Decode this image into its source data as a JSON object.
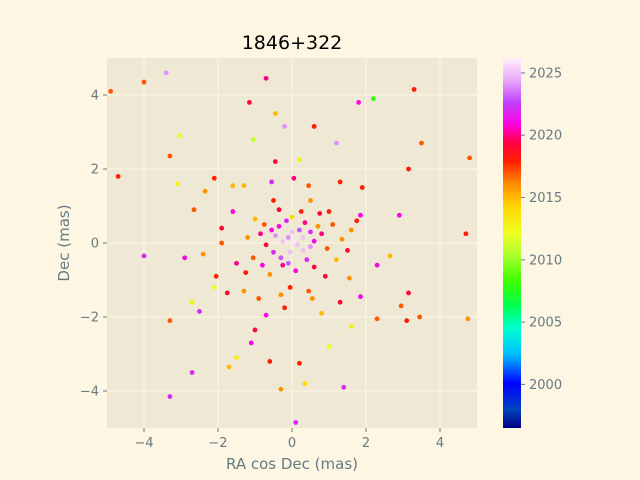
{
  "chart_data": {
    "type": "scatter",
    "title": "1846+322",
    "xlabel": "RA cos Dec (mas)",
    "ylabel": "Dec (mas)",
    "xlim": [
      -5,
      5
    ],
    "ylim": [
      -5,
      5
    ],
    "xticks": [
      -4,
      -2,
      0,
      2,
      4
    ],
    "yticks": [
      -4,
      -2,
      0,
      2,
      4
    ],
    "grid": true,
    "colorbar": {
      "label": "",
      "colormap": "gist_ncar",
      "range": [
        1996.5,
        2026.2
      ],
      "ticks": [
        2000,
        2005,
        2010,
        2015,
        2020,
        2025
      ]
    },
    "points": [
      {
        "x": -4.9,
        "y": 4.1,
        "c": 2017
      },
      {
        "x": -4.7,
        "y": 1.8,
        "c": 2018
      },
      {
        "x": -4.0,
        "y": 4.35,
        "c": 2017
      },
      {
        "x": -3.4,
        "y": 4.6,
        "c": 2024
      },
      {
        "x": -3.3,
        "y": 2.35,
        "c": 2017
      },
      {
        "x": -3.05,
        "y": 2.9,
        "c": 2012
      },
      {
        "x": -3.1,
        "y": 1.6,
        "c": 2013
      },
      {
        "x": -3.3,
        "y": -2.1,
        "c": 2017
      },
      {
        "x": -3.3,
        "y": -4.15,
        "c": 2022
      },
      {
        "x": -2.7,
        "y": -3.5,
        "c": 2022
      },
      {
        "x": -4.0,
        "y": -0.35,
        "c": 2022
      },
      {
        "x": -2.9,
        "y": -0.4,
        "c": 2021
      },
      {
        "x": -2.5,
        "y": -1.85,
        "c": 2022
      },
      {
        "x": -2.1,
        "y": 1.75,
        "c": 2018
      },
      {
        "x": -1.6,
        "y": 1.55,
        "c": 2015
      },
      {
        "x": -1.15,
        "y": 3.8,
        "c": 2019
      },
      {
        "x": -0.7,
        "y": 4.45,
        "c": 2020
      },
      {
        "x": -0.45,
        "y": 3.5,
        "c": 2015
      },
      {
        "x": -0.2,
        "y": 3.15,
        "c": 2024
      },
      {
        "x": 0.6,
        "y": 3.15,
        "c": 2018
      },
      {
        "x": 1.2,
        "y": 2.7,
        "c": 2024
      },
      {
        "x": 1.8,
        "y": 3.8,
        "c": 2021
      },
      {
        "x": 2.2,
        "y": 3.9,
        "c": 2008
      },
      {
        "x": 3.3,
        "y": 4.15,
        "c": 2018
      },
      {
        "x": 3.5,
        "y": 2.7,
        "c": 2017
      },
      {
        "x": 3.15,
        "y": 2.0,
        "c": 2018
      },
      {
        "x": 4.8,
        "y": 2.3,
        "c": 2017
      },
      {
        "x": 4.7,
        "y": 0.25,
        "c": 2018
      },
      {
        "x": 4.75,
        "y": -2.05,
        "c": 2016
      },
      {
        "x": 3.45,
        "y": -2.0,
        "c": 2017
      },
      {
        "x": 3.1,
        "y": -2.1,
        "c": 2018
      },
      {
        "x": 2.95,
        "y": -1.7,
        "c": 2017
      },
      {
        "x": 3.15,
        "y": -1.35,
        "c": 2019
      },
      {
        "x": 2.9,
        "y": 0.75,
        "c": 2021
      },
      {
        "x": 2.65,
        "y": -0.35,
        "c": 2015
      },
      {
        "x": 2.3,
        "y": -2.05,
        "c": 2017
      },
      {
        "x": 1.6,
        "y": -2.25,
        "c": 2013
      },
      {
        "x": 1.4,
        "y": -3.9,
        "c": 2022
      },
      {
        "x": 1.0,
        "y": -2.8,
        "c": 2012
      },
      {
        "x": 0.2,
        "y": -3.25,
        "c": 2018
      },
      {
        "x": 0.35,
        "y": -3.8,
        "c": 2014
      },
      {
        "x": -0.3,
        "y": -3.95,
        "c": 2016
      },
      {
        "x": 0.1,
        "y": -4.85,
        "c": 2022
      },
      {
        "x": -0.6,
        "y": -3.2,
        "c": 2018
      },
      {
        "x": -1.5,
        "y": -3.1,
        "c": 2013
      },
      {
        "x": -1.7,
        "y": -3.35,
        "c": 2015
      },
      {
        "x": -1.1,
        "y": -2.7,
        "c": 2021
      },
      {
        "x": -1.0,
        "y": -2.35,
        "c": 2019
      },
      {
        "x": -2.7,
        "y": -1.6,
        "c": 2013
      },
      {
        "x": -2.1,
        "y": -1.2,
        "c": 2012
      },
      {
        "x": -2.05,
        "y": -0.9,
        "c": 2018
      },
      {
        "x": -2.4,
        "y": -0.3,
        "c": 2016
      },
      {
        "x": -1.9,
        "y": 0.4,
        "c": 2019
      },
      {
        "x": -2.65,
        "y": 0.9,
        "c": 2017
      },
      {
        "x": -2.35,
        "y": 1.4,
        "c": 2016
      },
      {
        "x": -1.3,
        "y": 1.55,
        "c": 2015
      },
      {
        "x": -0.45,
        "y": 2.2,
        "c": 2019
      },
      {
        "x": -1.05,
        "y": 2.8,
        "c": 2011
      },
      {
        "x": 0.2,
        "y": 2.25,
        "c": 2013
      },
      {
        "x": 1.3,
        "y": 1.65,
        "c": 2018
      },
      {
        "x": 1.9,
        "y": 1.5,
        "c": 2018
      },
      {
        "x": 1.85,
        "y": 0.75,
        "c": 2021
      },
      {
        "x": 1.75,
        "y": 0.6,
        "c": 2018
      },
      {
        "x": 2.3,
        "y": -0.6,
        "c": 2021
      },
      {
        "x": 1.85,
        "y": -1.45,
        "c": 2021
      },
      {
        "x": 1.3,
        "y": -1.6,
        "c": 2019
      },
      {
        "x": 0.8,
        "y": -1.9,
        "c": 2015
      },
      {
        "x": -0.3,
        "y": -1.4,
        "c": 2016
      },
      {
        "x": -0.9,
        "y": -1.5,
        "c": 2017
      },
      {
        "x": -1.3,
        "y": -1.3,
        "c": 2016
      },
      {
        "x": -1.0,
        "y": 0.65,
        "c": 2015
      },
      {
        "x": -0.5,
        "y": 1.15,
        "c": 2018
      },
      {
        "x": 0.5,
        "y": 1.15,
        "c": 2016
      },
      {
        "x": 1.0,
        "y": 0.85,
        "c": 2018
      },
      {
        "x": 1.35,
        "y": 0.1,
        "c": 2016
      },
      {
        "x": 1.2,
        "y": -0.45,
        "c": 2015
      },
      {
        "x": 0.9,
        "y": -0.9,
        "c": 2019
      },
      {
        "x": 0.45,
        "y": -1.3,
        "c": 2017
      },
      {
        "x": -0.05,
        "y": -1.2,
        "c": 2018
      },
      {
        "x": -0.6,
        "y": -0.85,
        "c": 2016
      },
      {
        "x": -1.05,
        "y": -0.4,
        "c": 2017
      },
      {
        "x": -1.2,
        "y": 0.15,
        "c": 2016
      },
      {
        "x": -0.75,
        "y": 0.5,
        "c": 2017
      },
      {
        "x": 0.0,
        "y": 0.7,
        "c": 2014
      },
      {
        "x": 0.7,
        "y": 0.45,
        "c": 2016
      },
      {
        "x": 0.95,
        "y": -0.15,
        "c": 2017
      },
      {
        "x": 0.6,
        "y": -0.65,
        "c": 2019
      },
      {
        "x": -0.25,
        "y": -0.6,
        "c": 2020
      },
      {
        "x": -0.7,
        "y": -0.05,
        "c": 2019
      },
      {
        "x": -0.35,
        "y": 0.45,
        "c": 2021
      },
      {
        "x": 0.35,
        "y": 0.55,
        "c": 2020
      },
      {
        "x": 0.6,
        "y": 0.05,
        "c": 2021
      },
      {
        "x": 0.4,
        "y": -0.45,
        "c": 2022
      },
      {
        "x": -0.1,
        "y": -0.55,
        "c": 2023
      },
      {
        "x": -0.5,
        "y": -0.25,
        "c": 2022
      },
      {
        "x": -0.45,
        "y": 0.2,
        "c": 2024
      },
      {
        "x": 0.0,
        "y": 0.3,
        "c": 2025
      },
      {
        "x": 0.3,
        "y": 0.15,
        "c": 2025
      },
      {
        "x": 0.3,
        "y": -0.2,
        "c": 2025
      },
      {
        "x": -0.05,
        "y": -0.25,
        "c": 2025
      },
      {
        "x": -0.25,
        "y": 0.05,
        "c": 2025
      },
      {
        "x": 0.05,
        "y": 0.05,
        "c": 2026
      },
      {
        "x": 0.15,
        "y": -0.05,
        "c": 2025
      },
      {
        "x": -0.1,
        "y": 0.15,
        "c": 2024
      },
      {
        "x": 0.2,
        "y": 0.35,
        "c": 2023
      },
      {
        "x": -0.3,
        "y": -0.4,
        "c": 2023
      },
      {
        "x": 0.5,
        "y": 0.3,
        "c": 2022
      },
      {
        "x": 0.5,
        "y": -0.1,
        "c": 2024
      },
      {
        "x": -0.55,
        "y": 0.35,
        "c": 2021
      },
      {
        "x": -0.15,
        "y": 0.6,
        "c": 2022
      },
      {
        "x": 0.1,
        "y": -0.75,
        "c": 2021
      },
      {
        "x": 0.8,
        "y": 0.25,
        "c": 2020
      },
      {
        "x": -0.85,
        "y": 0.25,
        "c": 2020
      },
      {
        "x": 0.25,
        "y": 0.85,
        "c": 2018
      },
      {
        "x": -0.35,
        "y": 0.9,
        "c": 2019
      },
      {
        "x": 0.75,
        "y": 0.8,
        "c": 2019
      },
      {
        "x": -0.8,
        "y": -0.6,
        "c": 2021
      },
      {
        "x": 1.1,
        "y": 0.5,
        "c": 2017
      },
      {
        "x": -1.25,
        "y": -0.8,
        "c": 2018
      },
      {
        "x": 1.5,
        "y": -0.2,
        "c": 2019
      },
      {
        "x": -1.5,
        "y": -0.55,
        "c": 2020
      },
      {
        "x": 1.6,
        "y": 0.35,
        "c": 2016
      },
      {
        "x": -1.6,
        "y": 0.85,
        "c": 2021
      },
      {
        "x": 0.45,
        "y": 1.55,
        "c": 2017
      },
      {
        "x": -0.55,
        "y": 1.65,
        "c": 2022
      },
      {
        "x": 0.05,
        "y": 1.75,
        "c": 2020
      },
      {
        "x": -0.2,
        "y": -1.75,
        "c": 2018
      },
      {
        "x": 0.55,
        "y": -1.5,
        "c": 2016
      },
      {
        "x": -0.7,
        "y": -1.95,
        "c": 2021
      },
      {
        "x": -1.75,
        "y": -1.35,
        "c": 2019
      },
      {
        "x": 1.55,
        "y": -0.95,
        "c": 2016
      },
      {
        "x": -1.9,
        "y": 0.0,
        "c": 2017
      }
    ]
  }
}
